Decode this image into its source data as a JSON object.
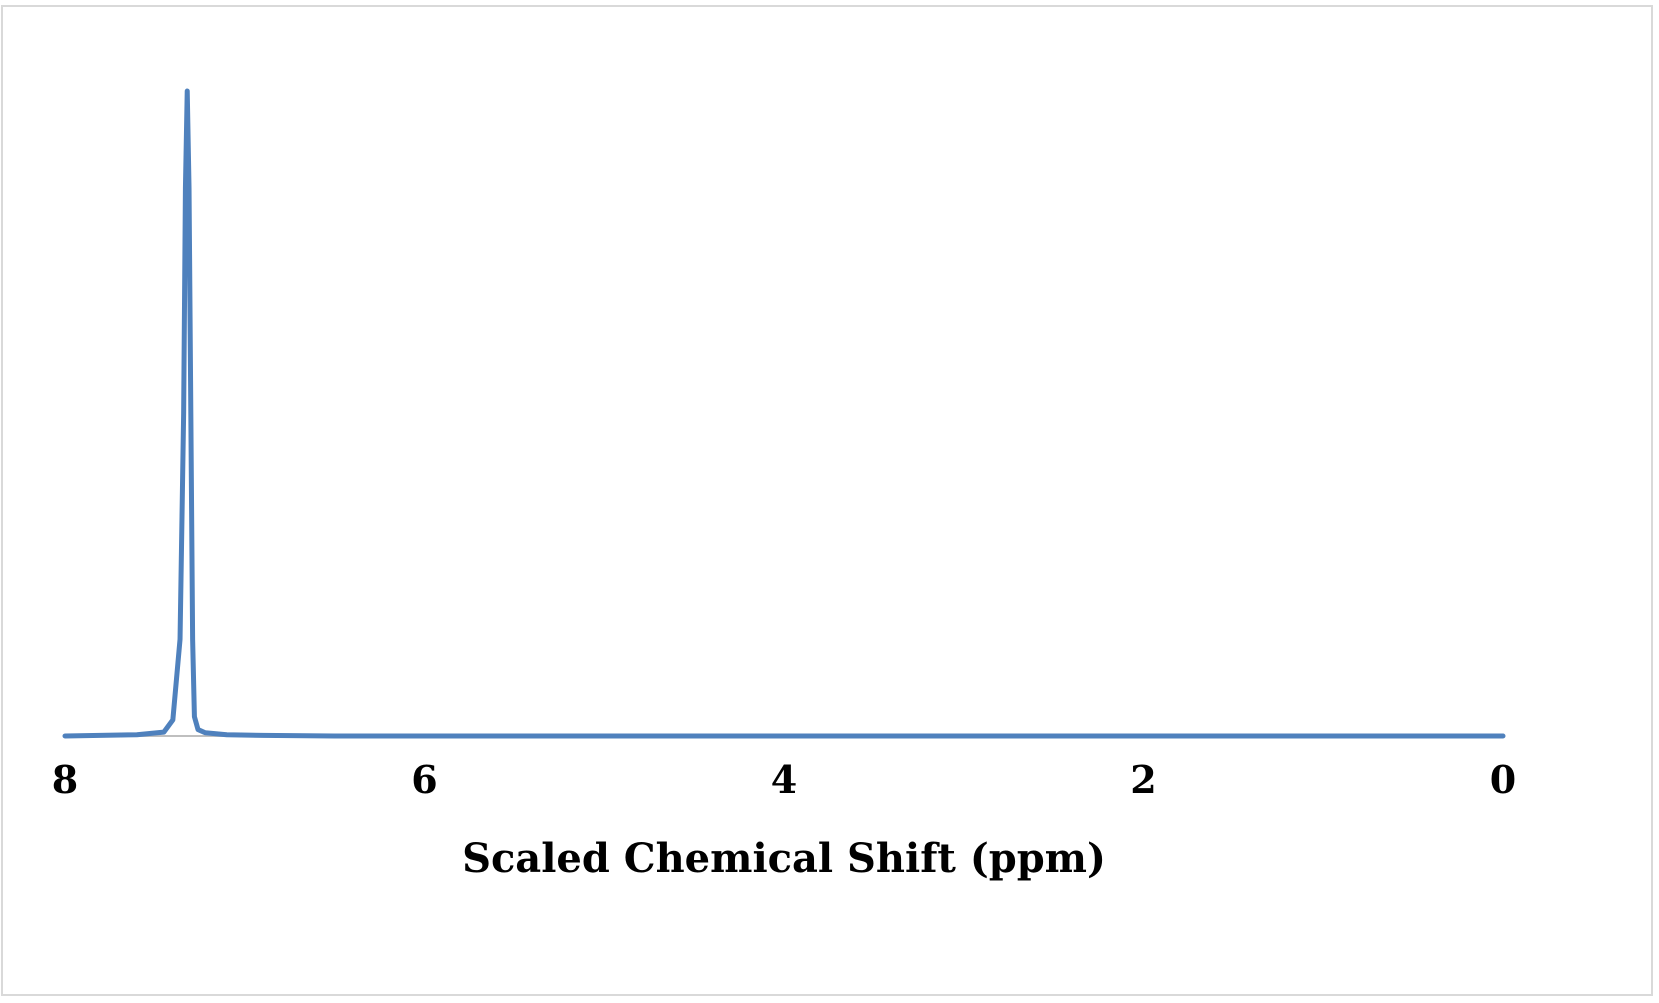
{
  "chart_data": {
    "type": "line",
    "title": "",
    "xlabel": "Scaled Chemical Shift (ppm)",
    "ylabel": "",
    "x_reversed": true,
    "xlim": [
      8,
      0
    ],
    "ylim": [
      0,
      1
    ],
    "x_ticks": [
      "8",
      "6",
      "4",
      "2",
      "0"
    ],
    "grid": false,
    "legend": "none",
    "series": [
      {
        "color": "#4f81bd",
        "x": [
          8.0,
          7.6,
          7.45,
          7.4,
          7.36,
          7.34,
          7.33,
          7.32,
          7.31,
          7.3,
          7.29,
          7.28,
          7.26,
          7.22,
          7.1,
          6.9,
          6.5,
          5.0,
          3.0,
          1.0,
          0.0
        ],
        "y": [
          0.0,
          0.002,
          0.006,
          0.025,
          0.15,
          0.5,
          0.85,
          1.0,
          0.85,
          0.5,
          0.15,
          0.03,
          0.01,
          0.005,
          0.002,
          0.001,
          0.0,
          0.0,
          0.0,
          0.0,
          0.0
        ]
      }
    ]
  }
}
